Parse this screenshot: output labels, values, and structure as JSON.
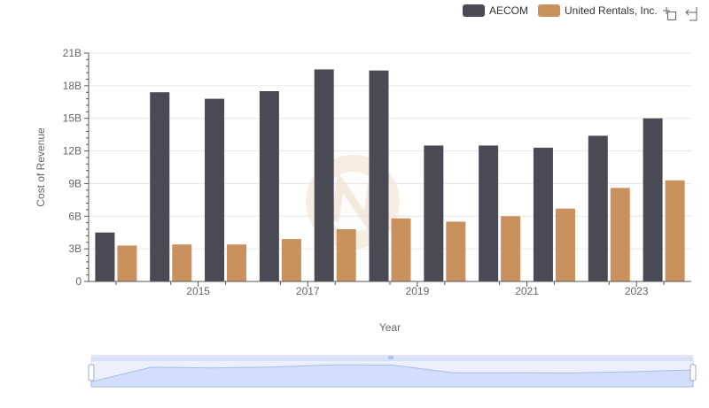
{
  "colors": {
    "series": [
      "#4a4a55",
      "#c8915d"
    ],
    "grid": "#e6e6e6",
    "axis": "#555555",
    "zoom_fill": "#d6e0ff",
    "zoom_line": "#8fa8e0"
  },
  "toolbar": {
    "icons": [
      "zoom-icon",
      "restore-icon"
    ]
  },
  "chart_data": {
    "type": "bar",
    "x": [
      2014,
      2015,
      2016,
      2017,
      2018,
      2019,
      2020,
      2021,
      2022,
      2023,
      2024
    ],
    "x_ticks": [
      2015,
      2017,
      2019,
      2021,
      2023
    ],
    "x_tick_labels": [
      "2015",
      "2017",
      "2019",
      "2021",
      "2023"
    ],
    "series": [
      {
        "name": "AECOM",
        "values": [
          4.5,
          17.4,
          16.8,
          17.5,
          19.5,
          19.4,
          12.5,
          12.5,
          12.3,
          13.4,
          15.0
        ]
      },
      {
        "name": "United Rentals, Inc.",
        "values": [
          3.3,
          3.4,
          3.4,
          3.9,
          4.8,
          5.8,
          5.5,
          6.0,
          6.7,
          8.6,
          9.3
        ]
      }
    ],
    "ylabel": "Cost of Revenue",
    "xlabel": "Year",
    "ylim": [
      0,
      21
    ],
    "y_ticks": [
      0,
      3,
      6,
      9,
      12,
      15,
      18,
      21
    ],
    "y_tick_labels": [
      "0",
      "3B",
      "6B",
      "9B",
      "12B",
      "15B",
      "18B",
      "21B"
    ],
    "grid": true,
    "legend_position": "top-right"
  }
}
